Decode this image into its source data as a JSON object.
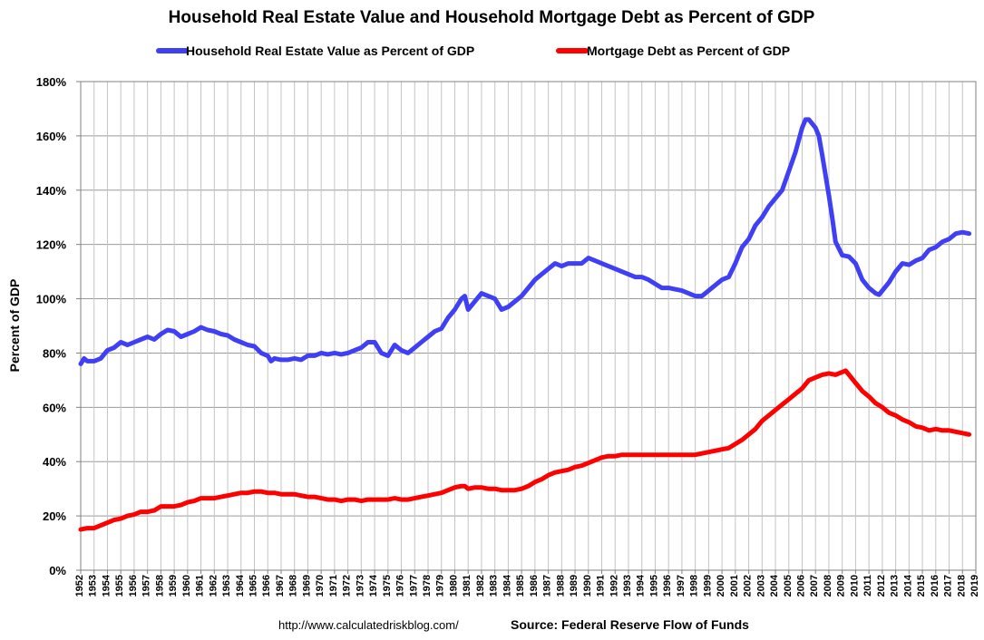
{
  "chart_data": {
    "type": "line",
    "title": "Household Real Estate Value and Household Mortgage Debt as Percent of GDP",
    "ylabel": "Percent of GDP",
    "xlabel": "",
    "ylim": [
      0,
      180
    ],
    "y_ticks": [
      "0%",
      "20%",
      "40%",
      "60%",
      "80%",
      "100%",
      "120%",
      "140%",
      "160%",
      "180%"
    ],
    "x_range": [
      1952,
      2019
    ],
    "x_tick_labels": [
      "1952",
      "1953",
      "1954",
      "1955",
      "1956",
      "1957",
      "1958",
      "1959",
      "1960",
      "1961",
      "1962",
      "1963",
      "1964",
      "1965",
      "1966",
      "1967",
      "1968",
      "1969",
      "1970",
      "1971",
      "1972",
      "1973",
      "1974",
      "1975",
      "1976",
      "1977",
      "1978",
      "1979",
      "1980",
      "1981",
      "1982",
      "1983",
      "1984",
      "1985",
      "1986",
      "1987",
      "1988",
      "1989",
      "1990",
      "1991",
      "1992",
      "1993",
      "1994",
      "1995",
      "1996",
      "1997",
      "1998",
      "1999",
      "2000",
      "2001",
      "2002",
      "2003",
      "2004",
      "2005",
      "2006",
      "2007",
      "2008",
      "2009",
      "2010",
      "2011",
      "2012",
      "2013",
      "2014",
      "2015",
      "2016",
      "2017",
      "2018",
      "2019"
    ],
    "grid": true,
    "legend_position": "top",
    "series": [
      {
        "name": "Household Real Estate Value as Percent of GDP",
        "color": "#3f3ff5",
        "points": [
          [
            1952.0,
            76
          ],
          [
            1952.25,
            78
          ],
          [
            1952.5,
            77
          ],
          [
            1953.0,
            77
          ],
          [
            1953.5,
            78
          ],
          [
            1954.0,
            81
          ],
          [
            1954.5,
            82
          ],
          [
            1955.0,
            84
          ],
          [
            1955.5,
            83
          ],
          [
            1956.0,
            84
          ],
          [
            1956.5,
            85
          ],
          [
            1957.0,
            86
          ],
          [
            1957.5,
            85
          ],
          [
            1958.0,
            87
          ],
          [
            1958.5,
            88.5
          ],
          [
            1959.0,
            88
          ],
          [
            1959.5,
            86
          ],
          [
            1960.0,
            87
          ],
          [
            1960.5,
            88
          ],
          [
            1961.0,
            89.5
          ],
          [
            1961.5,
            88.5
          ],
          [
            1962.0,
            88
          ],
          [
            1962.5,
            87
          ],
          [
            1963.0,
            86.5
          ],
          [
            1963.5,
            85
          ],
          [
            1964.0,
            84
          ],
          [
            1964.5,
            83
          ],
          [
            1965.0,
            82.5
          ],
          [
            1965.5,
            80
          ],
          [
            1966.0,
            79
          ],
          [
            1966.25,
            77
          ],
          [
            1966.5,
            78
          ],
          [
            1967.0,
            77.5
          ],
          [
            1967.5,
            77.5
          ],
          [
            1968.0,
            78
          ],
          [
            1968.5,
            77.5
          ],
          [
            1969.0,
            79
          ],
          [
            1969.5,
            79
          ],
          [
            1970.0,
            80
          ],
          [
            1970.5,
            79.5
          ],
          [
            1971.0,
            80
          ],
          [
            1971.5,
            79.5
          ],
          [
            1972.0,
            80
          ],
          [
            1972.5,
            81
          ],
          [
            1973.0,
            82
          ],
          [
            1973.5,
            84
          ],
          [
            1974.0,
            84
          ],
          [
            1974.5,
            80
          ],
          [
            1975.0,
            79
          ],
          [
            1975.5,
            83
          ],
          [
            1976.0,
            81
          ],
          [
            1976.5,
            80
          ],
          [
            1977.0,
            82
          ],
          [
            1977.5,
            84
          ],
          [
            1978.0,
            86
          ],
          [
            1978.5,
            88
          ],
          [
            1979.0,
            89
          ],
          [
            1979.5,
            93
          ],
          [
            1980.0,
            96
          ],
          [
            1980.5,
            100
          ],
          [
            1980.75,
            101
          ],
          [
            1981.0,
            96
          ],
          [
            1981.5,
            99
          ],
          [
            1982.0,
            102
          ],
          [
            1982.5,
            101
          ],
          [
            1983.0,
            100
          ],
          [
            1983.5,
            96
          ],
          [
            1984.0,
            97
          ],
          [
            1984.5,
            99
          ],
          [
            1985.0,
            101
          ],
          [
            1985.5,
            104
          ],
          [
            1986.0,
            107
          ],
          [
            1986.5,
            109
          ],
          [
            1987.0,
            111
          ],
          [
            1987.5,
            113
          ],
          [
            1988.0,
            112
          ],
          [
            1988.5,
            113
          ],
          [
            1989.0,
            113
          ],
          [
            1989.5,
            113
          ],
          [
            1990.0,
            115
          ],
          [
            1990.5,
            114
          ],
          [
            1991.0,
            113
          ],
          [
            1991.5,
            112
          ],
          [
            1992.0,
            111
          ],
          [
            1992.5,
            110
          ],
          [
            1993.0,
            109
          ],
          [
            1993.5,
            108
          ],
          [
            1994.0,
            108
          ],
          [
            1994.5,
            107
          ],
          [
            1995.0,
            105.5
          ],
          [
            1995.5,
            104
          ],
          [
            1996.0,
            104
          ],
          [
            1996.5,
            103.5
          ],
          [
            1997.0,
            103
          ],
          [
            1997.5,
            102
          ],
          [
            1998.0,
            101
          ],
          [
            1998.5,
            101
          ],
          [
            1999.0,
            103
          ],
          [
            1999.5,
            105
          ],
          [
            2000.0,
            107
          ],
          [
            2000.5,
            108
          ],
          [
            2001.0,
            113
          ],
          [
            2001.5,
            119
          ],
          [
            2002.0,
            122
          ],
          [
            2002.5,
            127
          ],
          [
            2003.0,
            130
          ],
          [
            2003.5,
            134
          ],
          [
            2004.0,
            137
          ],
          [
            2004.5,
            140
          ],
          [
            2005.0,
            147
          ],
          [
            2005.5,
            154
          ],
          [
            2006.0,
            163
          ],
          [
            2006.25,
            166
          ],
          [
            2006.5,
            166
          ],
          [
            2007.0,
            163
          ],
          [
            2007.25,
            160
          ],
          [
            2007.5,
            153
          ],
          [
            2008.0,
            138
          ],
          [
            2008.25,
            130
          ],
          [
            2008.5,
            121
          ],
          [
            2009.0,
            116
          ],
          [
            2009.5,
            115.5
          ],
          [
            2010.0,
            113
          ],
          [
            2010.5,
            107
          ],
          [
            2011.0,
            104
          ],
          [
            2011.5,
            102
          ],
          [
            2011.75,
            101.5
          ],
          [
            2012.0,
            103
          ],
          [
            2012.5,
            106
          ],
          [
            2013.0,
            110
          ],
          [
            2013.5,
            113
          ],
          [
            2014.0,
            112.5
          ],
          [
            2014.5,
            114
          ],
          [
            2015.0,
            115
          ],
          [
            2015.5,
            118
          ],
          [
            2016.0,
            119
          ],
          [
            2016.5,
            121
          ],
          [
            2017.0,
            122
          ],
          [
            2017.5,
            124
          ],
          [
            2018.0,
            124.5
          ],
          [
            2018.5,
            124
          ]
        ]
      },
      {
        "name": "Mortgage Debt as Percent of GDP",
        "color": "#ff0000",
        "points": [
          [
            1952.0,
            15
          ],
          [
            1952.5,
            15.5
          ],
          [
            1953.0,
            15.5
          ],
          [
            1953.5,
            16.5
          ],
          [
            1954.0,
            17.5
          ],
          [
            1954.5,
            18.5
          ],
          [
            1955.0,
            19
          ],
          [
            1955.5,
            20
          ],
          [
            1956.0,
            20.5
          ],
          [
            1956.5,
            21.5
          ],
          [
            1957.0,
            21.5
          ],
          [
            1957.5,
            22
          ],
          [
            1958.0,
            23.5
          ],
          [
            1958.5,
            23.5
          ],
          [
            1959.0,
            23.5
          ],
          [
            1959.5,
            24
          ],
          [
            1960.0,
            25
          ],
          [
            1960.5,
            25.5
          ],
          [
            1961.0,
            26.5
          ],
          [
            1961.5,
            26.5
          ],
          [
            1962.0,
            26.5
          ],
          [
            1962.5,
            27
          ],
          [
            1963.0,
            27.5
          ],
          [
            1963.5,
            28
          ],
          [
            1964.0,
            28.5
          ],
          [
            1964.5,
            28.5
          ],
          [
            1965.0,
            29
          ],
          [
            1965.5,
            29
          ],
          [
            1966.0,
            28.5
          ],
          [
            1966.5,
            28.5
          ],
          [
            1967.0,
            28
          ],
          [
            1967.5,
            28
          ],
          [
            1968.0,
            28
          ],
          [
            1968.5,
            27.5
          ],
          [
            1969.0,
            27
          ],
          [
            1969.5,
            27
          ],
          [
            1970.0,
            26.5
          ],
          [
            1970.5,
            26
          ],
          [
            1971.0,
            26
          ],
          [
            1971.5,
            25.5
          ],
          [
            1972.0,
            26
          ],
          [
            1972.5,
            26
          ],
          [
            1973.0,
            25.5
          ],
          [
            1973.5,
            26
          ],
          [
            1974.0,
            26
          ],
          [
            1974.5,
            26
          ],
          [
            1975.0,
            26
          ],
          [
            1975.5,
            26.5
          ],
          [
            1976.0,
            26
          ],
          [
            1976.5,
            26
          ],
          [
            1977.0,
            26.5
          ],
          [
            1977.5,
            27
          ],
          [
            1978.0,
            27.5
          ],
          [
            1978.5,
            28
          ],
          [
            1979.0,
            28.5
          ],
          [
            1979.5,
            29.5
          ],
          [
            1980.0,
            30.5
          ],
          [
            1980.5,
            31
          ],
          [
            1980.75,
            31
          ],
          [
            1981.0,
            30
          ],
          [
            1981.5,
            30.5
          ],
          [
            1982.0,
            30.5
          ],
          [
            1982.5,
            30
          ],
          [
            1983.0,
            30
          ],
          [
            1983.5,
            29.5
          ],
          [
            1984.0,
            29.5
          ],
          [
            1984.5,
            29.5
          ],
          [
            1985.0,
            30
          ],
          [
            1985.5,
            31
          ],
          [
            1986.0,
            32.5
          ],
          [
            1986.5,
            33.5
          ],
          [
            1987.0,
            35
          ],
          [
            1987.5,
            36
          ],
          [
            1988.0,
            36.5
          ],
          [
            1988.5,
            37
          ],
          [
            1989.0,
            38
          ],
          [
            1989.5,
            38.5
          ],
          [
            1990.0,
            39.5
          ],
          [
            1990.5,
            40.5
          ],
          [
            1991.0,
            41.5
          ],
          [
            1991.5,
            42
          ],
          [
            1992.0,
            42
          ],
          [
            1992.5,
            42.5
          ],
          [
            1993.0,
            42.5
          ],
          [
            1993.5,
            42.5
          ],
          [
            1994.0,
            42.5
          ],
          [
            1994.5,
            42.5
          ],
          [
            1995.0,
            42.5
          ],
          [
            1995.5,
            42.5
          ],
          [
            1996.0,
            42.5
          ],
          [
            1996.5,
            42.5
          ],
          [
            1997.0,
            42.5
          ],
          [
            1997.5,
            42.5
          ],
          [
            1998.0,
            42.5
          ],
          [
            1998.5,
            43
          ],
          [
            1999.0,
            43.5
          ],
          [
            1999.5,
            44
          ],
          [
            2000.0,
            44.5
          ],
          [
            2000.5,
            45
          ],
          [
            2001.0,
            46.5
          ],
          [
            2001.5,
            48
          ],
          [
            2002.0,
            50
          ],
          [
            2002.5,
            52
          ],
          [
            2003.0,
            55
          ],
          [
            2003.5,
            57
          ],
          [
            2004.0,
            59
          ],
          [
            2004.5,
            61
          ],
          [
            2005.0,
            63
          ],
          [
            2005.5,
            65
          ],
          [
            2006.0,
            67
          ],
          [
            2006.5,
            70
          ],
          [
            2007.0,
            71
          ],
          [
            2007.5,
            72
          ],
          [
            2008.0,
            72.5
          ],
          [
            2008.5,
            72
          ],
          [
            2009.0,
            73
          ],
          [
            2009.25,
            73.5
          ],
          [
            2009.5,
            72
          ],
          [
            2010.0,
            69
          ],
          [
            2010.5,
            66
          ],
          [
            2011.0,
            64
          ],
          [
            2011.5,
            61.5
          ],
          [
            2012.0,
            60
          ],
          [
            2012.5,
            58
          ],
          [
            2013.0,
            57
          ],
          [
            2013.5,
            55.5
          ],
          [
            2014.0,
            54.5
          ],
          [
            2014.5,
            53
          ],
          [
            2015.0,
            52.5
          ],
          [
            2015.5,
            51.5
          ],
          [
            2016.0,
            52
          ],
          [
            2016.5,
            51.5
          ],
          [
            2017.0,
            51.5
          ],
          [
            2017.5,
            51
          ],
          [
            2018.0,
            50.5
          ],
          [
            2018.5,
            50
          ]
        ]
      }
    ],
    "footer_url": "http://www.calculatedriskblog.com/",
    "footer_source": "Source: Federal Reserve Flow of Funds"
  }
}
